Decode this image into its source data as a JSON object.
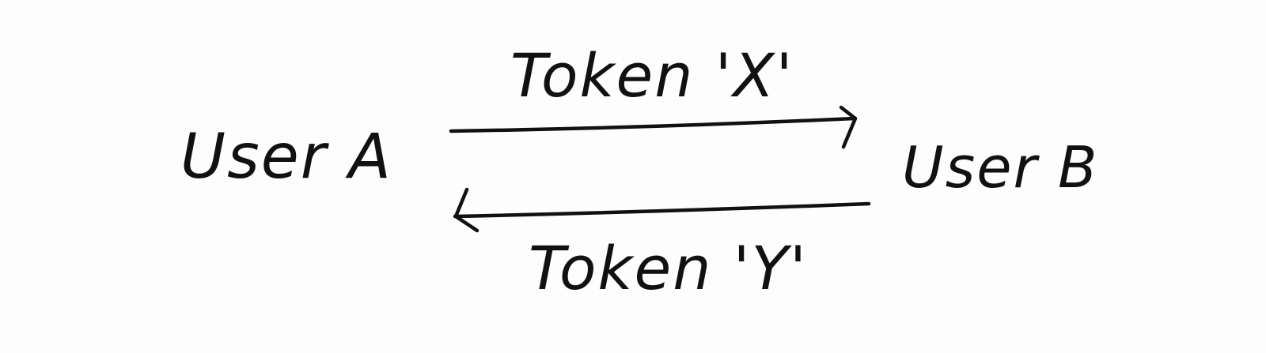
{
  "diagram": {
    "nodes": [
      {
        "id": "user-a",
        "label": "User A"
      },
      {
        "id": "user-b",
        "label": "User B"
      }
    ],
    "edges": [
      {
        "from": "user-a",
        "to": "user-b",
        "label": "Token 'X'"
      },
      {
        "from": "user-b",
        "to": "user-a",
        "label": "Token 'Y'"
      }
    ],
    "ink_color": "#111111",
    "background_color": "#fdfdfd"
  }
}
